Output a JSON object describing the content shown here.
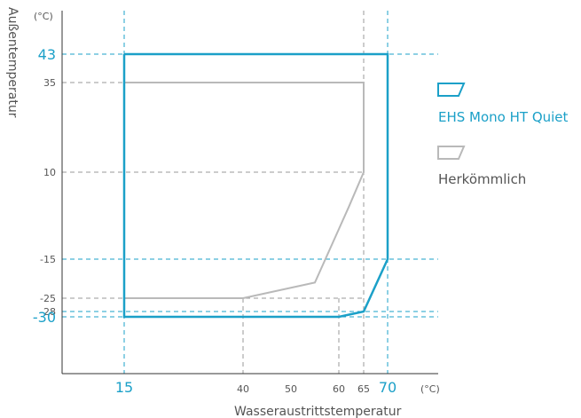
{
  "chart_data": {
    "type": "line",
    "xlabel": "Wasseraustrittstemperatur",
    "ylabel": "Außentemperatur",
    "x_unit": "(°C)",
    "y_unit": "(°C)",
    "xlim": [
      -10,
      75
    ],
    "ylim": [
      -50,
      58
    ],
    "x_ticks": [
      {
        "value": 15,
        "label": "15",
        "highlight": true
      },
      {
        "value": 40,
        "label": "40",
        "highlight": false
      },
      {
        "value": 50,
        "label": "50",
        "highlight": false
      },
      {
        "value": 60,
        "label": "60",
        "highlight": false
      },
      {
        "value": 65,
        "label": "65",
        "highlight": false
      },
      {
        "value": 70,
        "label": "70",
        "highlight": true
      }
    ],
    "y_ticks": [
      {
        "value": 43,
        "label": "43",
        "highlight": true
      },
      {
        "value": 35,
        "label": "35",
        "highlight": false
      },
      {
        "value": 10,
        "label": "10",
        "highlight": false
      },
      {
        "value": -15,
        "label": "-15",
        "highlight": false
      },
      {
        "value": -25,
        "label": "-25",
        "highlight": false
      },
      {
        "value": -28,
        "label": "-28",
        "highlight": false
      },
      {
        "value": -30,
        "label": "-30",
        "highlight": true
      }
    ],
    "series": [
      {
        "name": "EHS Mono HT Quiet",
        "color": "#1ba0c8",
        "x": [
          15,
          70,
          70,
          65,
          60,
          15,
          15
        ],
        "y": [
          43,
          43,
          -15,
          -28,
          -30,
          -30,
          43
        ]
      },
      {
        "name": "Herkömmlich",
        "color": "#b9b9b9",
        "x": [
          15,
          65,
          65,
          62,
          55,
          40,
          15,
          15
        ],
        "y": [
          35,
          35,
          10,
          0,
          -21,
          -25,
          -25,
          35
        ]
      }
    ],
    "gray_guides_x": [
      40,
      60,
      65
    ],
    "gray_guides_y": [
      35,
      10,
      -25
    ],
    "blue_guides_x": [
      15,
      70
    ],
    "blue_guides_y": [
      43,
      -15,
      -28,
      -30
    ],
    "legend_position": "right"
  }
}
